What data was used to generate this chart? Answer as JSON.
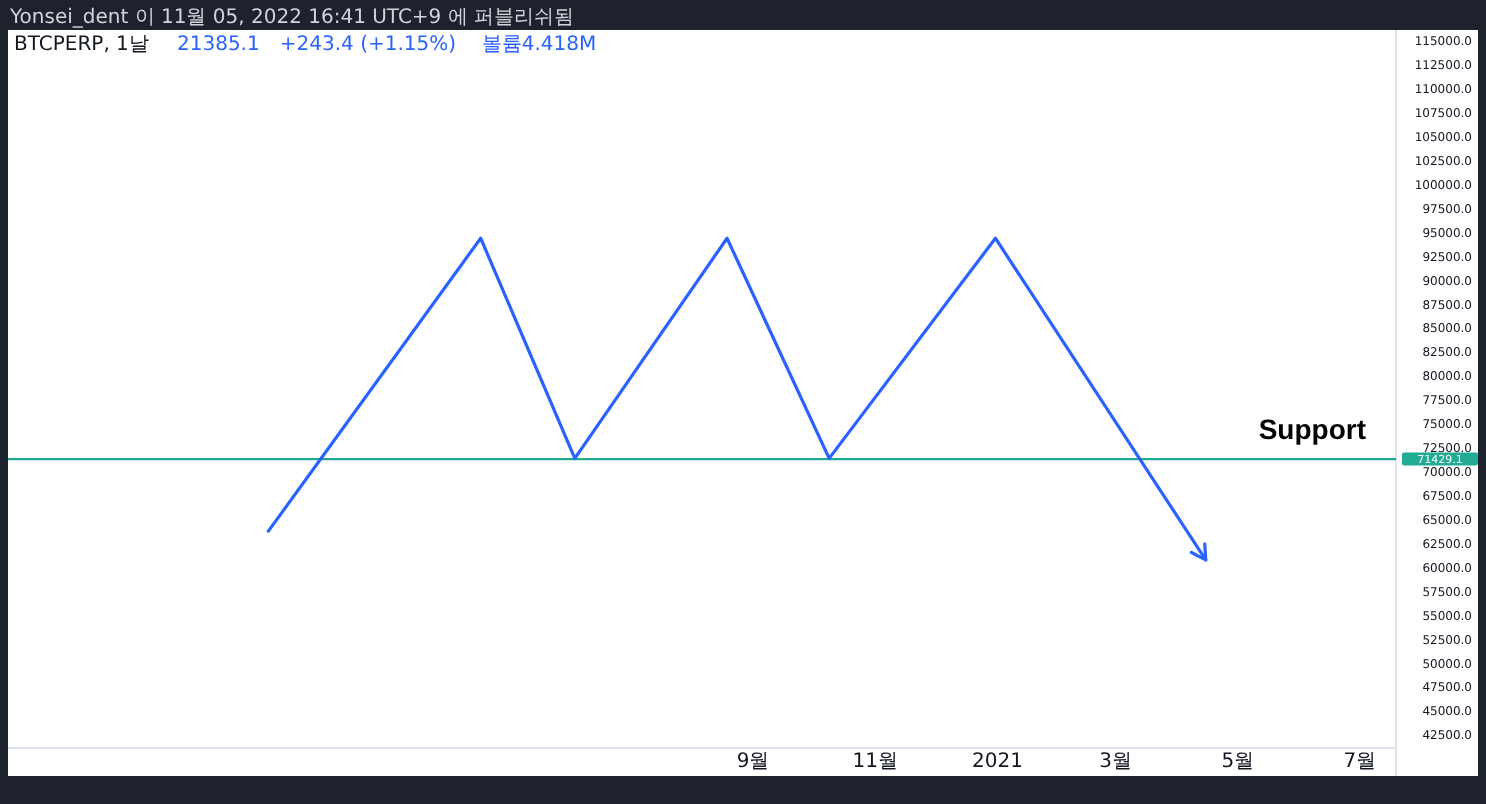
{
  "chart_data": {
    "type": "line",
    "title": "Yonsei_dent 이 11월 05, 2022 16:41 UTC+9 에 퍼블리쉬됨",
    "subtitle": "BTCPERP, 1날",
    "annotations": [
      "21385.1",
      "+243.4 (+1.15%)",
      "볼륨4.418M",
      "71429.1"
    ],
    "x": [
      "2020-01-03",
      "2020-04-18",
      "2020-06-04",
      "2020-08-19",
      "2020-10-09",
      "2020-12-31",
      "2021-04-15"
    ],
    "series": [
      {
        "color": "#2962ff",
        "values": [
          63900,
          94500,
          71500,
          94500,
          71500,
          94500,
          60900
        ]
      }
    ],
    "xlim": [
      "2019-08-26",
      "2021-07-19"
    ],
    "xticks": [
      {
        "value": "2020-09-01",
        "label": "9월"
      },
      {
        "value": "2020-11-01",
        "label": "11월"
      },
      {
        "value": "2021-01-01",
        "label": "2021"
      },
      {
        "value": "2021-03-01",
        "label": "3월"
      },
      {
        "value": "2021-05-01",
        "label": "5월"
      },
      {
        "value": "2021-07-01",
        "label": "7월"
      }
    ],
    "ylim": [
      41250,
      116250
    ],
    "yticks": [
      {
        "value": 115000,
        "label": "115000.0"
      },
      {
        "value": 112500,
        "label": "112500.0"
      },
      {
        "value": 110000,
        "label": "110000.0"
      },
      {
        "value": 107500,
        "label": "107500.0"
      },
      {
        "value": 105000,
        "label": "105000.0"
      },
      {
        "value": 102500,
        "label": "102500.0"
      },
      {
        "value": 100000,
        "label": "100000.0"
      },
      {
        "value": 97500,
        "label": "97500.0"
      },
      {
        "value": 95000,
        "label": "95000.0"
      },
      {
        "value": 92500,
        "label": "92500.0"
      },
      {
        "value": 90000,
        "label": "90000.0"
      },
      {
        "value": 87500,
        "label": "87500.0"
      },
      {
        "value": 85000,
        "label": "85000.0"
      },
      {
        "value": 82500,
        "label": "82500.0"
      },
      {
        "value": 80000,
        "label": "80000.0"
      },
      {
        "value": 77500,
        "label": "77500.0"
      },
      {
        "value": 75000,
        "label": "75000.0"
      },
      {
        "value": 72500,
        "label": "72500.0"
      },
      {
        "value": 70000,
        "label": "70000.0"
      },
      {
        "value": 67500,
        "label": "67500.0"
      },
      {
        "value": 65000,
        "label": "65000.0"
      },
      {
        "value": 62500,
        "label": "62500.0"
      },
      {
        "value": 60000,
        "label": "60000.0"
      },
      {
        "value": 57500,
        "label": "57500.0"
      },
      {
        "value": 55000,
        "label": "55000.0"
      },
      {
        "value": 52500,
        "label": "52500.0"
      },
      {
        "value": 50000,
        "label": "50000.0"
      },
      {
        "value": 47500,
        "label": "47500.0"
      },
      {
        "value": 45000,
        "label": "45000.0"
      },
      {
        "value": 42500,
        "label": "42500.0"
      }
    ],
    "ref_lines": [
      {
        "axis": "y",
        "value": 71429.1,
        "label": "Support",
        "color": "#22ab94"
      }
    ],
    "marker": "none",
    "line_style": "solid"
  }
}
